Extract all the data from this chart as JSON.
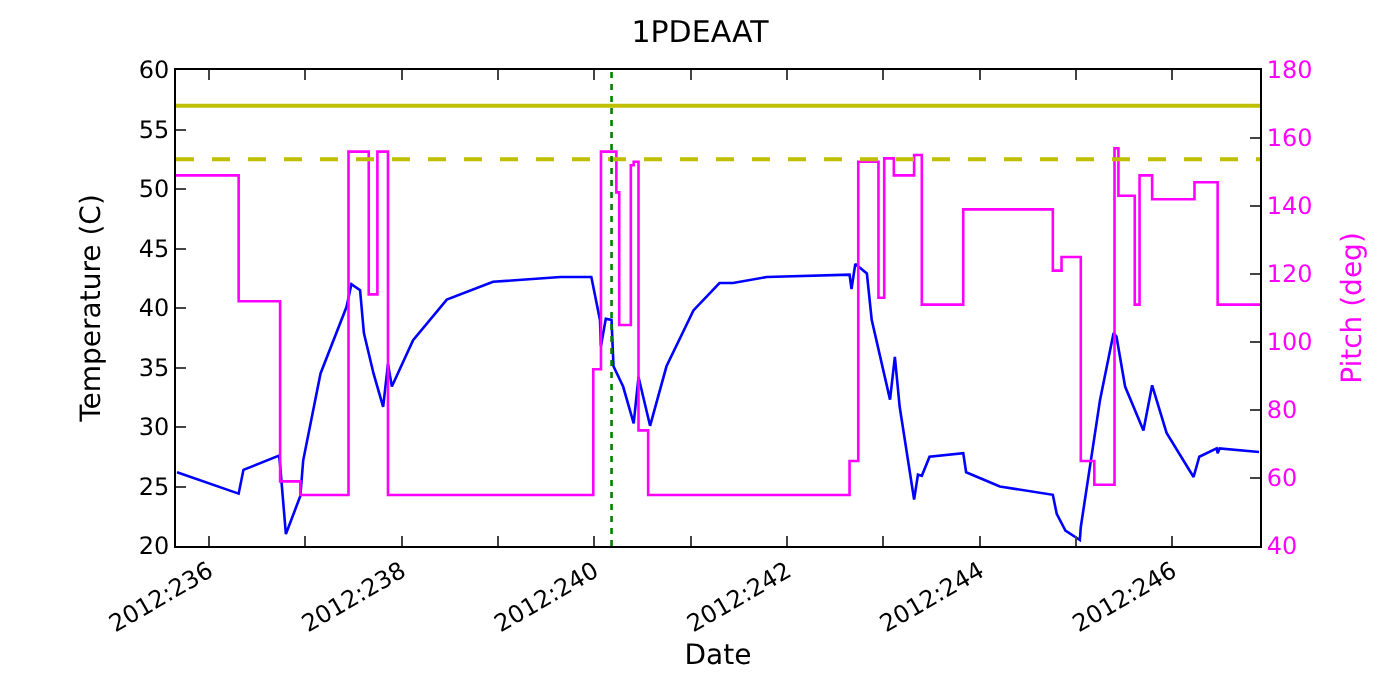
{
  "chart_data": {
    "type": "line",
    "title": "1PDEAAT",
    "xlabel": "Date",
    "ylabel": "Temperature (C)",
    "y2label": "Pitch (deg)",
    "xlim": [
      "2012-08-22T15:50",
      "2012-09-02T21:50"
    ],
    "xticks": [
      {
        "value": "2012-08-23",
        "label": "2012:236"
      },
      {
        "value": "2012-08-24",
        "label": null
      },
      {
        "value": "2012-08-25",
        "label": "2012:238"
      },
      {
        "value": "2012-08-26",
        "label": null
      },
      {
        "value": "2012-08-27",
        "label": "2012:240"
      },
      {
        "value": "2012-08-28",
        "label": null
      },
      {
        "value": "2012-08-29",
        "label": "2012:242"
      },
      {
        "value": "2012-08-30",
        "label": null
      },
      {
        "value": "2012-08-31",
        "label": "2012:244"
      },
      {
        "value": "2012-09-01",
        "label": null
      },
      {
        "value": "2012-09-02",
        "label": "2012:246"
      }
    ],
    "ylim": [
      20,
      60
    ],
    "yticks": [
      20,
      25,
      30,
      35,
      40,
      45,
      50,
      55,
      60
    ],
    "y2lim": [
      40,
      180
    ],
    "y2ticks": [
      40,
      60,
      80,
      100,
      120,
      140,
      160,
      180
    ],
    "series": [
      {
        "color": "#0000ff",
        "x": [
          "2012-08-22T16:05",
          "2012-08-23T07:26",
          "2012-08-23T08:38",
          "2012-08-23T17:31",
          "2012-08-23T17:46",
          "2012-08-23T19:12",
          "2012-08-23T22:48",
          "2012-08-23T23:31",
          "2012-08-24T03:50",
          "2012-08-24T10:19",
          "2012-08-24T11:31",
          "2012-08-24T13:41",
          "2012-08-24T14:38",
          "2012-08-24T17:02",
          "2012-08-24T19:26",
          "2012-08-24T20:38",
          "2012-08-24T21:36",
          "2012-08-25T02:53",
          "2012-08-25T11:17",
          "2012-08-25T22:48",
          "2012-08-26T15:36",
          "2012-08-26T23:17",
          "2012-08-27T01:26",
          "2012-08-27T01:41",
          "2012-08-27T02:53",
          "2012-08-27T04:19",
          "2012-08-27T04:48",
          "2012-08-27T07:12",
          "2012-08-27T09:50",
          "2012-08-27T11:02",
          "2012-08-27T13:55",
          "2012-08-27T18:00",
          "2012-08-28T00:43",
          "2012-08-28T07:12",
          "2012-08-28T10:34",
          "2012-08-28T18:58",
          "2012-08-29T15:36",
          "2012-08-29T16:05",
          "2012-08-29T17:02",
          "2012-08-29T19:55",
          "2012-08-29T21:07",
          "2012-08-30T01:41",
          "2012-08-30T02:53",
          "2012-08-30T04:05",
          "2012-08-30T07:41",
          "2012-08-30T08:38",
          "2012-08-30T09:36",
          "2012-08-30T11:31",
          "2012-08-30T19:55",
          "2012-08-30T20:38",
          "2012-08-31T05:02",
          "2012-08-31T18:14",
          "2012-08-31T19:12",
          "2012-08-31T21:22",
          "2012-09-01T00:58",
          "2012-09-01T01:12",
          "2012-09-01T06:00",
          "2012-09-01T09:22",
          "2012-09-01T10:05",
          "2012-09-01T12:14",
          "2012-09-01T16:48",
          "2012-09-01T18:58",
          "2012-09-01T22:34",
          "2012-09-02T05:17",
          "2012-09-02T06:43",
          "2012-09-02T11:02",
          "2012-09-02T11:17",
          "2012-09-02T11:46",
          "2012-09-02T21:36"
        ],
        "values": [
          26.2,
          24.4,
          26.4,
          27.6,
          26.8,
          21.0,
          24.2,
          27.2,
          34.5,
          40.1,
          42.0,
          41.5,
          37.9,
          34.5,
          31.7,
          35.3,
          33.4,
          37.3,
          40.7,
          42.2,
          42.6,
          42.6,
          39.0,
          36.8,
          39.1,
          39.0,
          35.1,
          33.4,
          30.3,
          34.2,
          30.1,
          35.1,
          39.8,
          42.1,
          42.1,
          42.6,
          42.8,
          41.6,
          43.7,
          42.9,
          39.0,
          32.3,
          35.9,
          31.7,
          23.9,
          26.0,
          25.9,
          27.5,
          27.8,
          26.2,
          25.0,
          24.3,
          22.7,
          21.3,
          20.5,
          21.6,
          32.3,
          37.9,
          37.6,
          33.4,
          29.7,
          33.5,
          29.5,
          25.8,
          27.5,
          28.2,
          27.8,
          28.2,
          27.9
        ]
      },
      {
        "type": "step",
        "axis": "y2",
        "color": "#ff00ff",
        "x": [
          "2012-08-22T15:50",
          "2012-08-23T07:26",
          "2012-08-23T17:46",
          "2012-08-23T22:48",
          "2012-08-24T10:48",
          "2012-08-24T15:50",
          "2012-08-24T18:00",
          "2012-08-24T20:38",
          "2012-08-26T23:46",
          "2012-08-27T01:41",
          "2012-08-27T05:31",
          "2012-08-27T06:14",
          "2012-08-27T09:07",
          "2012-08-27T09:50",
          "2012-08-27T11:02",
          "2012-08-27T13:26",
          "2012-08-29T15:36",
          "2012-08-29T17:46",
          "2012-08-29T22:48",
          "2012-08-30T00:14",
          "2012-08-30T02:38",
          "2012-08-30T07:41",
          "2012-08-30T09:36",
          "2012-08-30T19:55",
          "2012-08-31T18:14",
          "2012-08-31T20:24",
          "2012-09-01T01:12",
          "2012-09-01T04:34",
          "2012-09-01T09:36",
          "2012-09-01T10:34",
          "2012-09-01T14:38",
          "2012-09-01T15:50",
          "2012-09-01T18:58",
          "2012-09-02T05:31",
          "2012-09-02T11:17",
          "2012-09-02T21:50"
        ],
        "values": [
          149,
          112,
          59,
          55,
          156,
          114,
          156,
          55,
          92,
          156,
          144,
          105,
          152,
          153,
          74,
          55,
          65,
          153,
          113,
          154,
          149,
          155,
          111,
          139,
          121,
          125,
          65,
          58,
          157,
          143,
          111,
          149,
          142,
          147,
          111,
          111
        ]
      }
    ],
    "ref_lines": [
      {
        "axis": "y",
        "value": 57,
        "color": "#bfbf00",
        "line_style": "solid"
      },
      {
        "axis": "y",
        "value": 52.5,
        "color": "#bfbf00",
        "line_style": "dashed"
      },
      {
        "axis": "x",
        "value": "2012-08-27T04:19",
        "color": "#008000",
        "line_style": "dotted"
      }
    ]
  }
}
